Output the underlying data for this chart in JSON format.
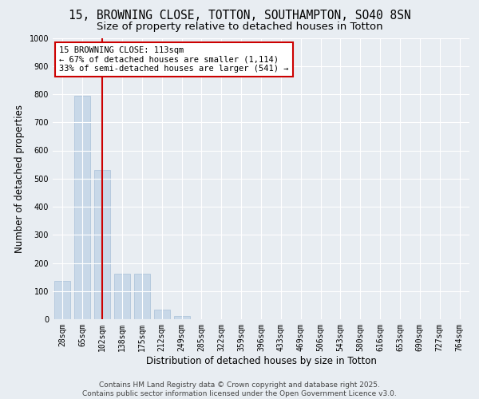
{
  "title_line1": "15, BROWNING CLOSE, TOTTON, SOUTHAMPTON, SO40 8SN",
  "title_line2": "Size of property relative to detached houses in Totton",
  "xlabel": "Distribution of detached houses by size in Totton",
  "ylabel": "Number of detached properties",
  "bar_color": "#c8d8e8",
  "bar_edge_color": "#a8c0d8",
  "categories": [
    "28sqm",
    "65sqm",
    "102sqm",
    "138sqm",
    "175sqm",
    "212sqm",
    "249sqm",
    "285sqm",
    "322sqm",
    "359sqm",
    "396sqm",
    "433sqm",
    "469sqm",
    "506sqm",
    "543sqm",
    "580sqm",
    "616sqm",
    "653sqm",
    "690sqm",
    "727sqm",
    "764sqm"
  ],
  "values": [
    137,
    795,
    530,
    162,
    162,
    35,
    10,
    0,
    0,
    0,
    0,
    0,
    0,
    0,
    0,
    0,
    0,
    0,
    0,
    0,
    0
  ],
  "ylim": [
    0,
    1000
  ],
  "yticks": [
    0,
    100,
    200,
    300,
    400,
    500,
    600,
    700,
    800,
    900,
    1000
  ],
  "vline_x_bar_index": 2,
  "vline_color": "#cc0000",
  "annotation_text": "15 BROWNING CLOSE: 113sqm\n← 67% of detached houses are smaller (1,114)\n33% of semi-detached houses are larger (541) →",
  "background_color": "#e8edf2",
  "plot_bg_color": "#e8edf2",
  "footer_line1": "Contains HM Land Registry data © Crown copyright and database right 2025.",
  "footer_line2": "Contains public sector information licensed under the Open Government Licence v3.0.",
  "grid_color": "#ffffff",
  "title_fontsize": 10.5,
  "subtitle_fontsize": 9.5,
  "annotation_fontsize": 7.5,
  "tick_fontsize": 7,
  "label_fontsize": 8.5,
  "footer_fontsize": 6.5
}
